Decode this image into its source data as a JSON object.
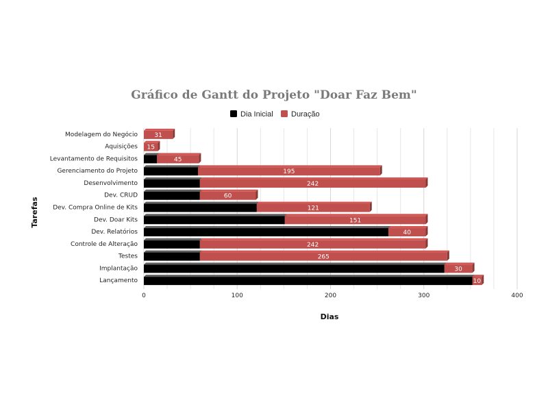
{
  "chart_data": {
    "type": "bar",
    "orientation": "horizontal",
    "stacked": true,
    "title": "Gráfico de Gantt do Projeto \"Doar Faz Bem\"",
    "xlabel": "Dias",
    "ylabel": "Tarefas",
    "xlim": [
      0,
      400
    ],
    "xticks": [
      0,
      100,
      200,
      300,
      400
    ],
    "grid": true,
    "legend_position": "top",
    "categories": [
      "Modelagem do Negócio",
      "Aquisições",
      "Levantamento de Requisitos",
      "Gerenciamento do Projeto",
      "Desenvolvimento",
      "Dev. CRUD",
      "Dev. Compra Online de Kits",
      "Dev. Doar Kits",
      "Dev. Relatórios",
      "Controle de Alteração",
      "Testes",
      "Implantação",
      "Lançamento"
    ],
    "series": [
      {
        "name": "Dia Inicial",
        "color": "#000000",
        "values": [
          0,
          0,
          14,
          58,
          60,
          60,
          121,
          151,
          262,
          60,
          60,
          322,
          352
        ]
      },
      {
        "name": "Duração",
        "color": "#c0504d",
        "values": [
          31,
          15,
          45,
          195,
          242,
          60,
          121,
          151,
          40,
          242,
          265,
          30,
          10
        ]
      }
    ]
  }
}
